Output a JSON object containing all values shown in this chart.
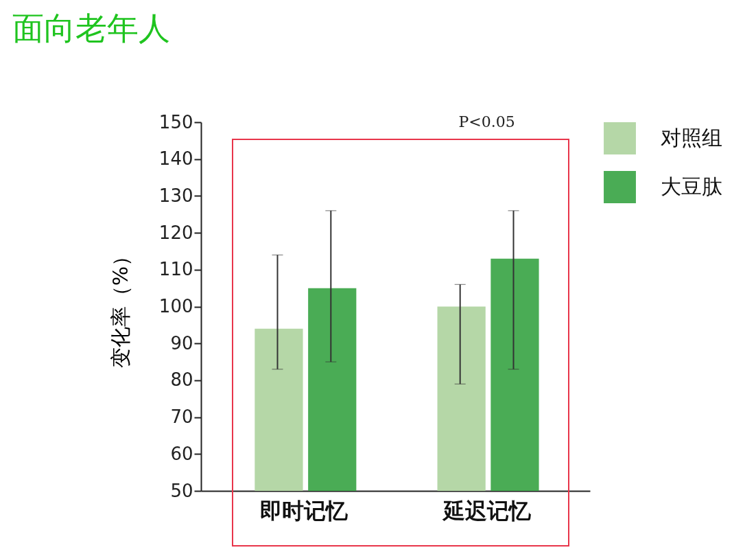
{
  "chart_data": {
    "type": "bar",
    "title": "面向老年人",
    "ylabel": "变化率（%）",
    "categories": [
      "即时记忆",
      "延迟记忆"
    ],
    "series": [
      {
        "name": "对照组",
        "color": "#b5d7a7",
        "values": [
          94,
          100
        ],
        "errors": [
          [
            83,
            114
          ],
          [
            79,
            106
          ]
        ]
      },
      {
        "name": "大豆肽",
        "color": "#4aac55",
        "values": [
          105,
          113
        ],
        "errors": [
          [
            85,
            126
          ],
          [
            83,
            126
          ]
        ]
      }
    ],
    "ylim": [
      50,
      150
    ],
    "yticks": [
      50,
      60,
      70,
      80,
      90,
      100,
      110,
      120,
      130,
      140,
      150
    ],
    "annotations": [
      "P<0.05"
    ],
    "grid": false,
    "legend": "right"
  }
}
